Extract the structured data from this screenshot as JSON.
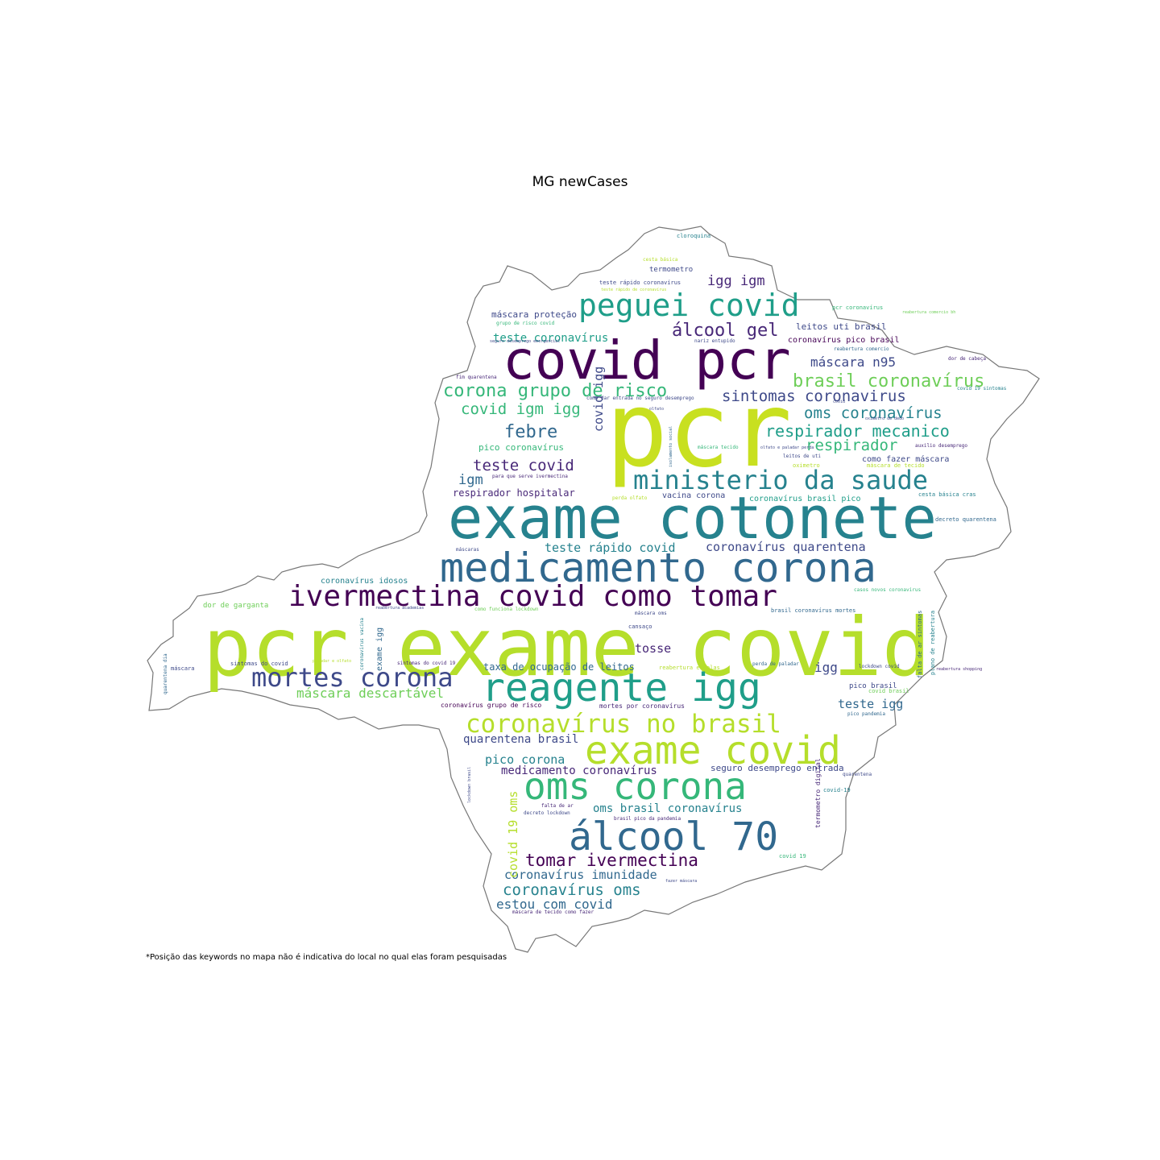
{
  "title": "MG newCases",
  "footnote": "*Posição das keywords no mapa não é indicativa do local no qual elas foram pesquisadas",
  "colors": {
    "purple": "#440154",
    "indigo": "#3e4989",
    "blue": "#31688e",
    "teal": "#26828e",
    "green": "#1f9e89",
    "lightgreen": "#35b779",
    "lime": "#6ece58",
    "yellowgreen": "#b5de2b",
    "yellow": "#fde725",
    "outline": "#777777"
  },
  "keywords": [
    {
      "text": "pcr",
      "color": "#c8e020"
    },
    {
      "text": "pcr exame covid",
      "color": "#b5de2b"
    },
    {
      "text": "exame cotonete",
      "color": "#26828e"
    },
    {
      "text": "covid pcr",
      "color": "#440154"
    },
    {
      "text": "medicamento corona",
      "color": "#31688e"
    },
    {
      "text": "reagente igg",
      "color": "#1f9e89"
    },
    {
      "text": "exame covid",
      "color": "#b5de2b"
    },
    {
      "text": "oms corona",
      "color": "#35b779"
    },
    {
      "text": "álcool 70",
      "color": "#31688e"
    },
    {
      "text": "ivermectina covid como tomar",
      "color": "#440154"
    },
    {
      "text": "peguei covid",
      "color": "#1f9e89"
    },
    {
      "text": "ministerio da saude",
      "color": "#26828e"
    },
    {
      "text": "mortes corona",
      "color": "#3e4989"
    },
    {
      "text": "coronavírus no brasil",
      "color": "#b5de2b"
    },
    {
      "text": "brasil coronavírus",
      "color": "#6ece58"
    },
    {
      "text": "corona grupo de risco",
      "color": "#35b779"
    },
    {
      "text": "álcool gel",
      "color": "#482878"
    },
    {
      "text": "sintomas coronavirus",
      "color": "#3e4989"
    },
    {
      "text": "respirador mecanico",
      "color": "#1f9e89"
    },
    {
      "text": "tomar ivermectina",
      "color": "#440154"
    },
    {
      "text": "teste covid",
      "color": "#482878"
    },
    {
      "text": "oms coronavírus",
      "color": "#26828e"
    },
    {
      "text": "respirador",
      "color": "#35b779"
    },
    {
      "text": "febre",
      "color": "#31688e"
    },
    {
      "text": "covid igm igg",
      "color": "#35b779"
    },
    {
      "text": "igg igm",
      "color": "#482878"
    },
    {
      "text": "coronavírus oms",
      "color": "#26828e"
    },
    {
      "text": "máscara descartável",
      "color": "#6ece58"
    },
    {
      "text": "estou com covid",
      "color": "#31688e"
    },
    {
      "text": "máscara n95",
      "color": "#3e4989"
    },
    {
      "text": "teste rápido covid",
      "color": "#26828e"
    },
    {
      "text": "coronavírus quarentena",
      "color": "#3e4989"
    },
    {
      "text": "coronavírus imunidade",
      "color": "#31688e"
    },
    {
      "text": "teste coronavírus",
      "color": "#1f9e89"
    },
    {
      "text": "pico corona",
      "color": "#26828e"
    },
    {
      "text": "quarentena brasil",
      "color": "#3e4989"
    },
    {
      "text": "medicamento coronavírus",
      "color": "#482878"
    },
    {
      "text": "oms brasil coronavírus",
      "color": "#26828e"
    },
    {
      "text": "teste igg",
      "color": "#31688e"
    },
    {
      "text": "igm",
      "color": "#31688e"
    },
    {
      "text": "igg",
      "color": "#3e4989"
    },
    {
      "text": "tosse",
      "color": "#482878"
    },
    {
      "text": "covid igg",
      "color": "#3e4989"
    },
    {
      "text": "covid 19 oms",
      "color": "#b5de2b"
    },
    {
      "text": "respirador hospitalar",
      "color": "#482878"
    },
    {
      "text": "taxa de ocupação de leitos",
      "color": "#31688e"
    },
    {
      "text": "seguro desemprego entrada",
      "color": "#3e4989"
    },
    {
      "text": "pico coronavírus",
      "color": "#35b779"
    },
    {
      "text": "leitos uti brasil",
      "color": "#3e4989"
    },
    {
      "text": "máscara proteção",
      "color": "#3e4989"
    },
    {
      "text": "coronavírus idosos",
      "color": "#26828e"
    },
    {
      "text": "dor de garganta",
      "color": "#6ece58"
    },
    {
      "text": "coronavírus pico brasil",
      "color": "#440154"
    },
    {
      "text": "como fazer máscara",
      "color": "#3e4989"
    },
    {
      "text": "vacina corona",
      "color": "#3e4989"
    },
    {
      "text": "coronavírus brasil pico",
      "color": "#1f9e89"
    },
    {
      "text": "exame igg",
      "color": "#31688e"
    },
    {
      "text": "termometro",
      "color": "#3e4989"
    },
    {
      "text": "pico brasil",
      "color": "#3e4989"
    },
    {
      "text": "sintomas do covid",
      "color": "#3e4989"
    },
    {
      "text": "máscara",
      "color": "#3e4989"
    },
    {
      "text": "mortes por coronavírus",
      "color": "#482878"
    },
    {
      "text": "coronavírus grupo de risco",
      "color": "#440154"
    },
    {
      "text": "cloroquina",
      "color": "#26828e"
    },
    {
      "text": "teste rápido coronavírus",
      "color": "#3e4989"
    },
    {
      "text": "grupo de risco covid",
      "color": "#35b779"
    },
    {
      "text": "nariz entupido",
      "color": "#3e4989"
    },
    {
      "text": "reabertura comercio",
      "color": "#31688e"
    },
    {
      "text": "dor de cabeça",
      "color": "#482878"
    },
    {
      "text": "fim quarentena",
      "color": "#482878"
    },
    {
      "text": "como dar entrada no seguro desemprego",
      "color": "#3e4989"
    },
    {
      "text": "covid 19 sintomas",
      "color": "#26828e"
    },
    {
      "text": "pcr coronavírus",
      "color": "#35b779"
    },
    {
      "text": "olfato",
      "color": "#3e4989"
    },
    {
      "text": "isolamento social",
      "color": "#31688e"
    },
    {
      "text": "máscara tecido",
      "color": "#35b779"
    },
    {
      "text": "auxilio desemprego",
      "color": "#482878"
    },
    {
      "text": "leitos de uti",
      "color": "#3e4989"
    },
    {
      "text": "oximetro",
      "color": "#b5de2b"
    },
    {
      "text": "máscara de tecido",
      "color": "#b5de2b"
    },
    {
      "text": "para que serve ivermectina",
      "color": "#482878"
    },
    {
      "text": "perda olfato",
      "color": "#b5de2b"
    },
    {
      "text": "cesta básica cras",
      "color": "#26828e"
    },
    {
      "text": "decreto quarentena",
      "color": "#31688e"
    },
    {
      "text": "máscaras",
      "color": "#3e4989"
    },
    {
      "text": "casos novos coronavirus",
      "color": "#35b779"
    },
    {
      "text": "brasil coronavírus mortes",
      "color": "#31688e"
    },
    {
      "text": "como funciona lockdown",
      "color": "#6ece58"
    },
    {
      "text": "cansaço",
      "color": "#3e4989"
    },
    {
      "text": "coronavirus vacina",
      "color": "#26828e"
    },
    {
      "text": "quarentena dia",
      "color": "#31688e"
    },
    {
      "text": "sintomas do covid 19",
      "color": "#482878"
    },
    {
      "text": "reabertura escolas",
      "color": "#b5de2b"
    },
    {
      "text": "perda de paladar",
      "color": "#31688e"
    },
    {
      "text": "lockdown covid",
      "color": "#3e4989"
    },
    {
      "text": "falta de ar sintomas",
      "color": "#31688e"
    },
    {
      "text": "plano de reabertura",
      "color": "#26828e"
    },
    {
      "text": "covid brasil",
      "color": "#6ece58"
    },
    {
      "text": "pico pandemia",
      "color": "#31688e"
    },
    {
      "text": "lockdown brasil",
      "color": "#3e4989"
    },
    {
      "text": "falta de ar",
      "color": "#482878"
    },
    {
      "text": "decreto lockdown",
      "color": "#3e4989"
    },
    {
      "text": "brasil pico da pandemia",
      "color": "#482878"
    },
    {
      "text": "termometro digital",
      "color": "#482878"
    },
    {
      "text": "covid-19",
      "color": "#26828e"
    },
    {
      "text": "quarentena",
      "color": "#3e4989"
    },
    {
      "text": "covid 19",
      "color": "#35b779"
    },
    {
      "text": "fazer máscara",
      "color": "#3e4989"
    },
    {
      "text": "máscara de tecido como fazer",
      "color": "#482878"
    },
    {
      "text": "cesta básica",
      "color": "#b5de2b"
    },
    {
      "text": "máscara oms",
      "color": "#3e4989"
    },
    {
      "text": "covid",
      "color": "#3e4989"
    },
    {
      "text": "oximetro de dedo",
      "color": "#3e4989"
    },
    {
      "text": "reabertura shopping",
      "color": "#482878"
    },
    {
      "text": "paladar e olfato",
      "color": "#b5de2b"
    },
    {
      "text": "seguro desemprego emergencial",
      "color": "#3e4989"
    },
    {
      "text": "teste rápido de coronavírus",
      "color": "#b5de2b"
    },
    {
      "text": "reabertura academias",
      "color": "#3e4989"
    },
    {
      "text": "reabertura comercio bh",
      "color": "#6ece58"
    },
    {
      "text": "olfato e paladar perda",
      "color": "#3e4989"
    }
  ]
}
